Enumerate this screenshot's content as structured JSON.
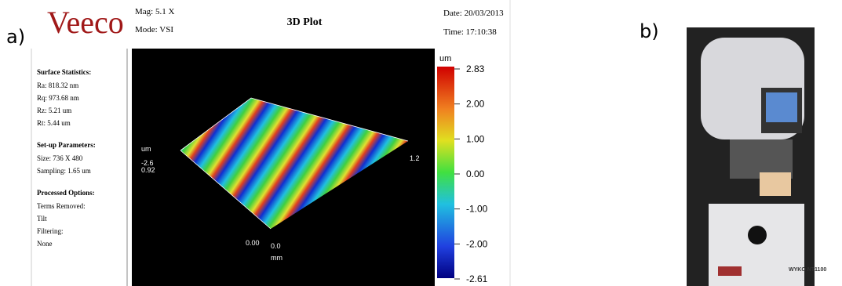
{
  "panel_a": {
    "label": "a)",
    "header": {
      "logo": "Veeco",
      "mag": "Mag:  5.1 X",
      "mode": "Mode:  VSI",
      "title": "3D Plot",
      "date": "Date:  20/03/2013",
      "time": "Time:  17:10:38"
    },
    "sidebar": {
      "stats_title": "Surface Statistics:",
      "stats": [
        "Ra:  818.32 nm",
        "Rq:  973.68 nm",
        "Rz:  5.21 um",
        "Rt:  5.44 um"
      ],
      "setup_title": "Set-up Parameters:",
      "setup": [
        "Size: 736 X 480",
        "Sampling:  1.65 um"
      ],
      "options_title": "Processed Options:",
      "options": [
        "Terms Removed:",
        "Tilt",
        "Filtering:",
        "None"
      ]
    },
    "plot": {
      "z_unit": "um",
      "z_min": "-2.6",
      "z_max": "0.92",
      "y_end": "1.2",
      "x_origin": "0.00",
      "y_origin": "0.0",
      "x_unit": "mm"
    },
    "colorbar": {
      "unit": "um",
      "ticks": [
        "2.83",
        "2.00",
        "1.00",
        "0.00",
        "-1.00",
        "-2.00",
        "-2.61"
      ]
    }
  },
  "panel_b": {
    "label": "b)",
    "instrument": "WYKO NT1100"
  }
}
